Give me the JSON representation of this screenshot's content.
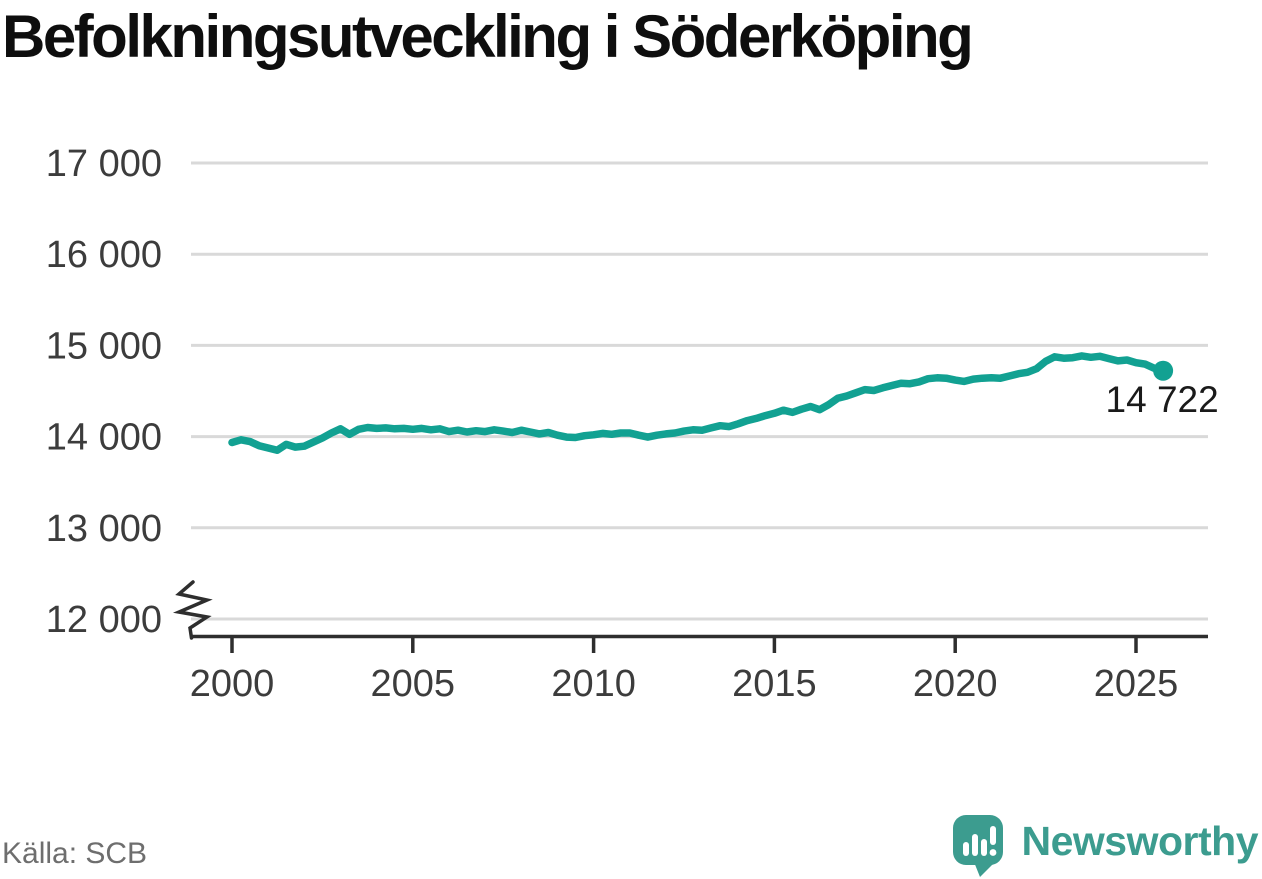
{
  "title": "Befolkningsutveckling i Söderköping",
  "source": "Källa: SCB",
  "branding": {
    "logo_text": "Newsworthy",
    "logo_icon": "bar-chart-exclamation-speech-bubble-icon"
  },
  "colors": {
    "background": "#ffffff",
    "line": "#12a192",
    "end_marker": "#12a192",
    "grid": "#d9d9d9",
    "axis": "#2e2e2e",
    "tick_label": "#3c3c3c",
    "end_label": "#1a1a1a",
    "title": "#0e0e0e",
    "source": "#6e6e6e",
    "logo": "#3c9c8f"
  },
  "chart_data": {
    "type": "line",
    "title": "Befolkningsutveckling i Söderköping",
    "xlabel": "",
    "ylabel": "",
    "grid": "horizontal",
    "legend": "none",
    "axis_break_bottom": true,
    "xlim": [
      1998.9,
      2027
    ],
    "ylim": [
      12000,
      17000
    ],
    "x_ticks": [
      2000,
      2005,
      2010,
      2015,
      2020,
      2025
    ],
    "x_tick_labels": [
      "2000",
      "2005",
      "2010",
      "2015",
      "2020",
      "2025"
    ],
    "y_ticks": [
      17000,
      16000,
      15000,
      14000,
      13000,
      12000
    ],
    "y_tick_labels": [
      "17 000",
      "16 000",
      "15 000",
      "14 000",
      "13 000",
      "12 000"
    ],
    "end_point_label": "14 722",
    "end_point_value": 14722,
    "series": [
      {
        "points": [
          [
            2000.0,
            13935
          ],
          [
            2000.25,
            13965
          ],
          [
            2000.5,
            13945
          ],
          [
            2000.75,
            13900
          ],
          [
            2001.0,
            13875
          ],
          [
            2001.25,
            13850
          ],
          [
            2001.5,
            13915
          ],
          [
            2001.75,
            13885
          ],
          [
            2002.0,
            13895
          ],
          [
            2002.25,
            13940
          ],
          [
            2002.5,
            13985
          ],
          [
            2002.75,
            14040
          ],
          [
            2003.0,
            14085
          ],
          [
            2003.25,
            14025
          ],
          [
            2003.5,
            14080
          ],
          [
            2003.75,
            14100
          ],
          [
            2004.0,
            14090
          ],
          [
            2004.25,
            14095
          ],
          [
            2004.5,
            14085
          ],
          [
            2004.75,
            14090
          ],
          [
            2005.0,
            14080
          ],
          [
            2005.25,
            14090
          ],
          [
            2005.5,
            14075
          ],
          [
            2005.75,
            14085
          ],
          [
            2006.0,
            14055
          ],
          [
            2006.25,
            14070
          ],
          [
            2006.5,
            14050
          ],
          [
            2006.75,
            14065
          ],
          [
            2007.0,
            14055
          ],
          [
            2007.25,
            14075
          ],
          [
            2007.5,
            14060
          ],
          [
            2007.75,
            14045
          ],
          [
            2008.0,
            14070
          ],
          [
            2008.25,
            14050
          ],
          [
            2008.5,
            14030
          ],
          [
            2008.75,
            14045
          ],
          [
            2009.0,
            14015
          ],
          [
            2009.25,
            13995
          ],
          [
            2009.5,
            13990
          ],
          [
            2009.75,
            14010
          ],
          [
            2010.0,
            14020
          ],
          [
            2010.25,
            14035
          ],
          [
            2010.5,
            14025
          ],
          [
            2010.75,
            14040
          ],
          [
            2011.0,
            14040
          ],
          [
            2011.25,
            14015
          ],
          [
            2011.5,
            13995
          ],
          [
            2011.75,
            14015
          ],
          [
            2012.0,
            14030
          ],
          [
            2012.25,
            14040
          ],
          [
            2012.5,
            14060
          ],
          [
            2012.75,
            14075
          ],
          [
            2013.0,
            14070
          ],
          [
            2013.25,
            14095
          ],
          [
            2013.5,
            14120
          ],
          [
            2013.75,
            14110
          ],
          [
            2014.0,
            14140
          ],
          [
            2014.25,
            14175
          ],
          [
            2014.5,
            14200
          ],
          [
            2014.75,
            14230
          ],
          [
            2015.0,
            14255
          ],
          [
            2015.25,
            14290
          ],
          [
            2015.5,
            14265
          ],
          [
            2015.75,
            14300
          ],
          [
            2016.0,
            14330
          ],
          [
            2016.25,
            14295
          ],
          [
            2016.5,
            14350
          ],
          [
            2016.75,
            14420
          ],
          [
            2017.0,
            14445
          ],
          [
            2017.25,
            14480
          ],
          [
            2017.5,
            14515
          ],
          [
            2017.75,
            14505
          ],
          [
            2018.0,
            14535
          ],
          [
            2018.25,
            14560
          ],
          [
            2018.5,
            14585
          ],
          [
            2018.75,
            14580
          ],
          [
            2019.0,
            14600
          ],
          [
            2019.25,
            14635
          ],
          [
            2019.5,
            14645
          ],
          [
            2019.75,
            14640
          ],
          [
            2020.0,
            14620
          ],
          [
            2020.25,
            14605
          ],
          [
            2020.5,
            14630
          ],
          [
            2020.75,
            14640
          ],
          [
            2021.0,
            14645
          ],
          [
            2021.25,
            14640
          ],
          [
            2021.5,
            14665
          ],
          [
            2021.75,
            14690
          ],
          [
            2022.0,
            14705
          ],
          [
            2022.25,
            14745
          ],
          [
            2022.5,
            14825
          ],
          [
            2022.75,
            14875
          ],
          [
            2023.0,
            14860
          ],
          [
            2023.25,
            14865
          ],
          [
            2023.5,
            14885
          ],
          [
            2023.75,
            14870
          ],
          [
            2024.0,
            14880
          ],
          [
            2024.25,
            14855
          ],
          [
            2024.5,
            14830
          ],
          [
            2024.75,
            14840
          ],
          [
            2025.0,
            14810
          ],
          [
            2025.25,
            14795
          ],
          [
            2025.5,
            14750
          ],
          [
            2025.75,
            14722
          ]
        ]
      }
    ]
  }
}
